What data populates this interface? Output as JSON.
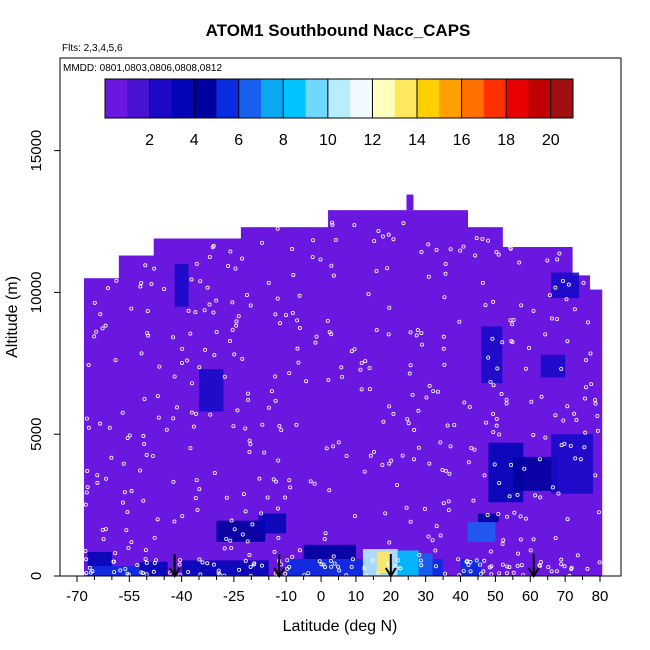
{
  "chart_data": {
    "type": "heatmap",
    "title": "ATOM1 Southbound Nacc_CAPS",
    "annotations": {
      "flights": "Flts: 2,3,4,5,6",
      "dates": "MMDD: 0801,0803,0806,0808,0812"
    },
    "xlabel": "Latitude (deg N)",
    "ylabel": "Altitude (m)",
    "xlim": [
      -70,
      85
    ],
    "ylim": [
      0,
      17500
    ],
    "x_ticks": [
      -70,
      -55,
      -40,
      -25,
      -10,
      0,
      10,
      20,
      30,
      40,
      50,
      60,
      70,
      80
    ],
    "x_tick_labels": [
      "-70",
      "-55",
      "-40",
      "-25",
      "-10",
      "0",
      "10",
      "20",
      "30",
      "40",
      "50",
      "60",
      "70",
      "80"
    ],
    "y_ticks": [
      0,
      5000,
      10000,
      15000
    ],
    "y_tick_labels": [
      "0",
      "5000",
      "10000",
      "15000"
    ],
    "colorbar": {
      "range": [
        0,
        21
      ],
      "tick_values": [
        2,
        4,
        6,
        8,
        10,
        12,
        14,
        16,
        18,
        20
      ],
      "tick_labels": [
        "2",
        "4",
        "6",
        "8",
        "10",
        "12",
        "14",
        "16",
        "18",
        "20"
      ],
      "colors": [
        "#6a17e0",
        "#4a13d4",
        "#1a0ac8",
        "#0505b8",
        "#00009e",
        "#0a2ce0",
        "#1a60f0",
        "#0aa8f0",
        "#00c4ff",
        "#70d8ff",
        "#b8ecff",
        "#f0faff",
        "#ffffc0",
        "#ffe860",
        "#ffd000",
        "#ffa000",
        "#ff7000",
        "#ff3000",
        "#e80000",
        "#c00000",
        "#a01010"
      ]
    },
    "envelope": [
      [
        -68,
        10500
      ],
      [
        -62,
        11300
      ],
      [
        -50,
        11900
      ],
      [
        -35,
        11900
      ],
      [
        -25,
        12300
      ],
      [
        -5,
        12300
      ],
      [
        2,
        12900
      ],
      [
        25,
        12900
      ],
      [
        40,
        12300
      ],
      [
        48,
        11600
      ],
      [
        60,
        11600
      ],
      [
        70,
        10600
      ],
      [
        76,
        10100
      ],
      [
        78,
        7600
      ],
      [
        80,
        5200
      ],
      [
        80.5,
        400
      ]
    ],
    "background_value": 0.5,
    "enhanced_regions": [
      {
        "x": [
          -67,
          -52
        ],
        "y": [
          0,
          350
        ],
        "value": 5
      },
      {
        "x": [
          -67,
          -60
        ],
        "y": [
          350,
          850
        ],
        "value": 3
      },
      {
        "x": [
          -52,
          -44
        ],
        "y": [
          0,
          500
        ],
        "value": 3
      },
      {
        "x": [
          -40,
          -15
        ],
        "y": [
          0,
          550
        ],
        "value": 3
      },
      {
        "x": [
          -30,
          -16
        ],
        "y": [
          1200,
          1950
        ],
        "value": 4
      },
      {
        "x": [
          -18,
          -10
        ],
        "y": [
          1500,
          2200
        ],
        "value": 3
      },
      {
        "x": [
          -10,
          35
        ],
        "y": [
          0,
          600
        ],
        "value": 5
      },
      {
        "x": [
          -5,
          10
        ],
        "y": [
          600,
          1100
        ],
        "value": 4
      },
      {
        "x": [
          12,
          22
        ],
        "y": [
          0,
          950
        ],
        "value": 10
      },
      {
        "x": [
          16,
          20
        ],
        "y": [
          100,
          850
        ],
        "value": 13
      },
      {
        "x": [
          22,
          28
        ],
        "y": [
          0,
          900
        ],
        "value": 8
      },
      {
        "x": [
          28,
          32
        ],
        "y": [
          0,
          800
        ],
        "value": 6
      },
      {
        "x": [
          40,
          46
        ],
        "y": [
          0,
          600
        ],
        "value": 5
      },
      {
        "x": [
          42,
          50
        ],
        "y": [
          1200,
          1900
        ],
        "value": 6
      },
      {
        "x": [
          45,
          51
        ],
        "y": [
          1900,
          2200
        ],
        "value": 4
      },
      {
        "x": [
          48,
          58
        ],
        "y": [
          2600,
          4700
        ],
        "value": 3
      },
      {
        "x": [
          55,
          68
        ],
        "y": [
          3000,
          4200
        ],
        "value": 4
      },
      {
        "x": [
          66,
          78
        ],
        "y": [
          2900,
          5000
        ],
        "value": 2
      },
      {
        "x": [
          -35,
          -28
        ],
        "y": [
          5800,
          7300
        ],
        "value": 2
      },
      {
        "x": [
          -42,
          -38
        ],
        "y": [
          9500,
          11000
        ],
        "value": 2
      },
      {
        "x": [
          46,
          52
        ],
        "y": [
          6800,
          8800
        ],
        "value": 2
      },
      {
        "x": [
          63,
          70
        ],
        "y": [
          7000,
          7800
        ],
        "value": 2
      },
      {
        "x": [
          66,
          74
        ],
        "y": [
          9800,
          10700
        ],
        "value": 2
      }
    ],
    "sonde_arrows_lat": [
      -42,
      -12,
      20,
      61
    ]
  }
}
